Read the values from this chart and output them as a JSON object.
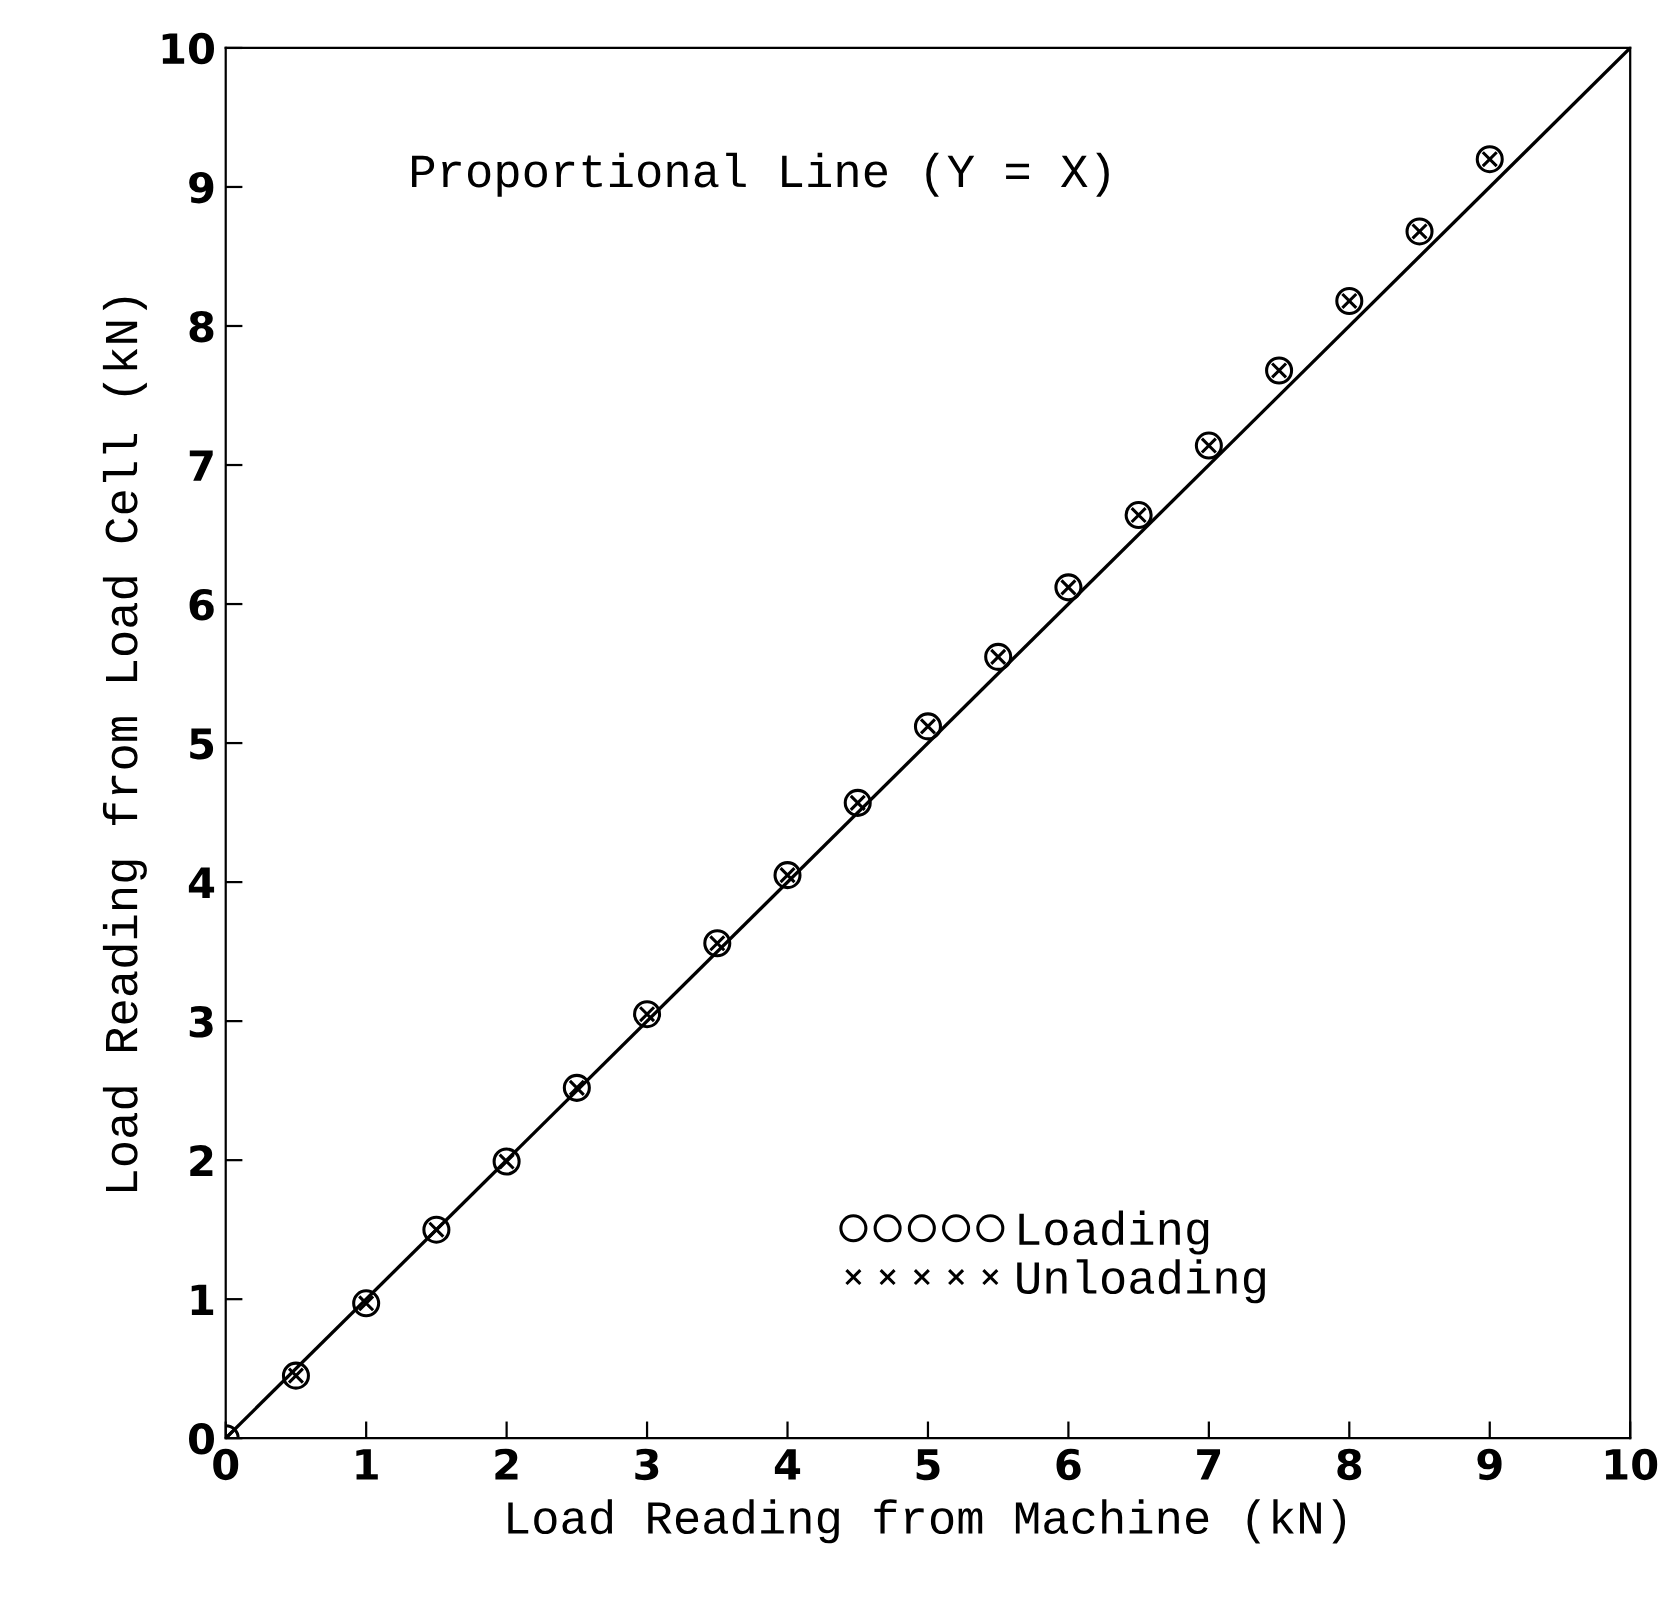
{
  "chart_data": {
    "type": "scatter",
    "xlabel": "Load Reading from Machine (kN)",
    "ylabel": "Load Reading from Load Cell (kN)",
    "annotations": [
      "Proportional Line (Y = X)"
    ],
    "x": [
      0,
      0.5,
      1,
      1.5,
      2,
      2.5,
      3,
      3.5,
      4,
      4.5,
      5,
      5.5,
      6,
      6.5,
      7,
      7.5,
      8,
      8.5,
      9
    ],
    "series": [
      {
        "name": "Loading",
        "color": "#000000",
        "marker": "circle",
        "values": [
          0,
          0.45,
          0.97,
          1.5,
          1.99,
          2.52,
          3.05,
          3.56,
          4.05,
          4.57,
          5.12,
          5.62,
          6.12,
          6.64,
          7.14,
          7.68,
          8.18,
          8.68,
          9.2
        ]
      },
      {
        "name": "Unloading",
        "color": "#000000",
        "marker": "cross",
        "values": [
          0,
          0.45,
          0.97,
          1.5,
          1.99,
          2.52,
          3.05,
          3.56,
          4.05,
          4.57,
          5.12,
          5.62,
          6.12,
          6.64,
          7.14,
          7.68,
          8.18,
          8.68,
          9.2
        ]
      },
      {
        "type": "line",
        "color": "#000000",
        "marker": "none",
        "line_style": "solid",
        "x": [
          0,
          10
        ],
        "values": [
          0,
          10
        ]
      }
    ],
    "xlim": [
      0,
      10
    ],
    "ylim": [
      0,
      10
    ],
    "xticks": [
      0,
      1,
      2,
      3,
      4,
      5,
      6,
      7,
      8,
      9,
      10
    ],
    "yticks": [
      0,
      1,
      2,
      3,
      4,
      5,
      6,
      7,
      8,
      9,
      10
    ],
    "legend": "bottom right",
    "grid": false
  }
}
